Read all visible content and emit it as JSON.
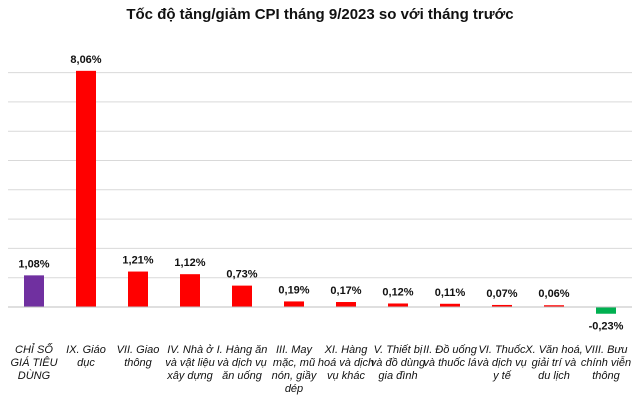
{
  "chart_data": {
    "type": "bar",
    "title": "Tốc độ tăng/giảm CPI tháng 9/2023 so với tháng trước",
    "xlabel": "",
    "ylabel": "",
    "ylim": [
      -0.5,
      8.8
    ],
    "grid": true,
    "categories": [
      "CHỈ SỐ GIÁ TIÊU DÙNG",
      "IX. Giáo dục",
      "VII. Giao thông",
      "IV. Nhà ở và vật liệu xây dựng",
      "I. Hàng ăn và dịch vụ ăn uống",
      "III. May mặc, mũ nón, giầy dép",
      "XI. Hàng hoá và dịch vụ khác",
      "V. Thiết bị và đồ dùng gia đình",
      "II. Đồ uống và thuốc lá",
      "VI. Thuốc và dịch vụ y tế",
      "X. Văn hoá, giải trí và du lịch",
      "VIII. Bưu chính viễn thông"
    ],
    "values": [
      1.08,
      8.06,
      1.21,
      1.12,
      0.73,
      0.19,
      0.17,
      0.12,
      0.11,
      0.07,
      0.06,
      -0.23
    ],
    "value_labels": [
      "1,08%",
      "8,06%",
      "1,21%",
      "1,12%",
      "0,73%",
      "0,19%",
      "0,17%",
      "0,12%",
      "0,11%",
      "0,07%",
      "0,06%",
      "-0,23%"
    ],
    "colors": {
      "total": "#7030a0",
      "increase": "#ff0000",
      "decrease": "#00b050"
    }
  }
}
